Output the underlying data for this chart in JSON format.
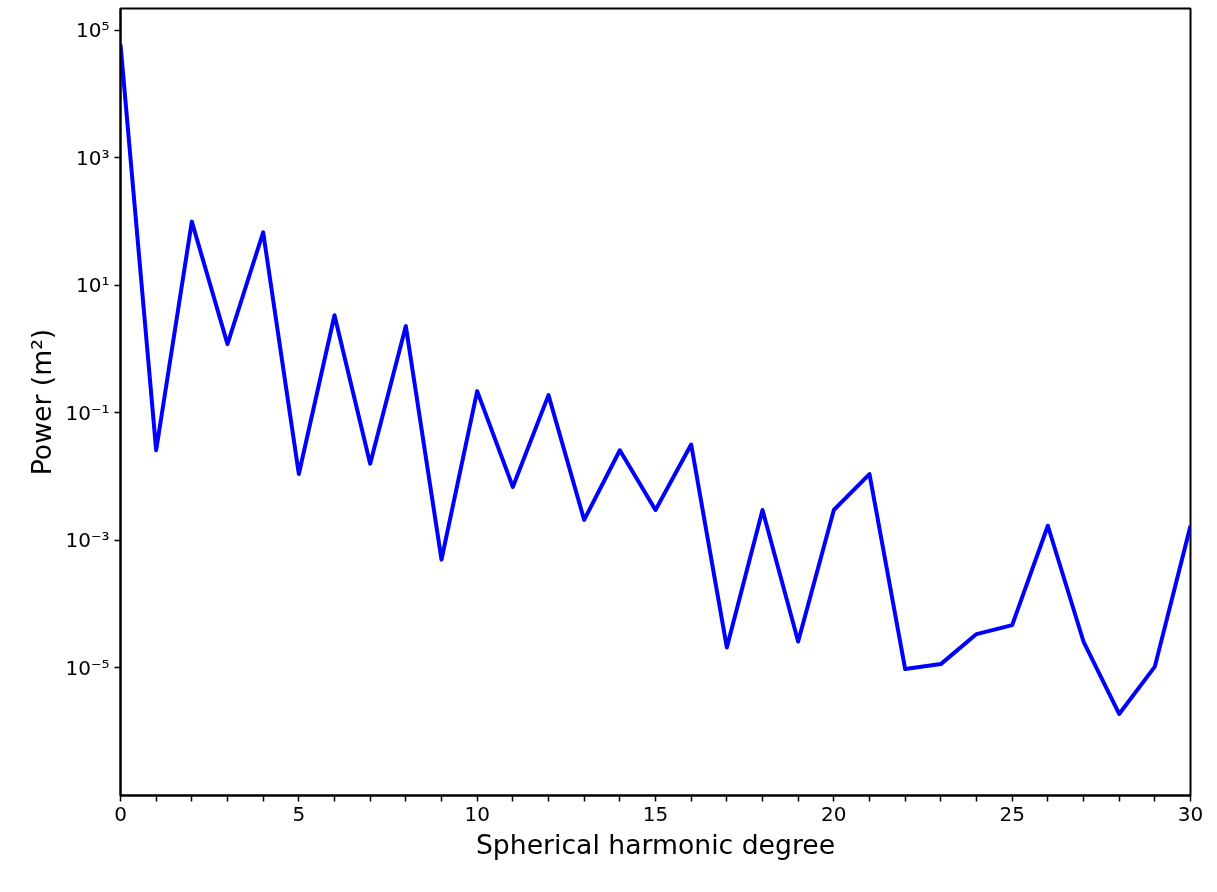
{
  "chart_data": {
    "type": "line",
    "xlabel": "Spherical harmonic degree",
    "ylabel": "Power (m²)",
    "log": "y",
    "grid": false,
    "marker": "none",
    "line_style": "solid",
    "x": [
      0,
      1,
      2,
      3,
      4,
      5,
      6,
      7,
      8,
      9,
      10,
      11,
      12,
      13,
      14,
      15,
      16,
      17,
      18,
      19,
      20,
      21,
      22,
      23,
      24,
      25,
      26,
      27,
      28,
      29,
      30
    ],
    "series": [
      {
        "color": "#0000ff",
        "values": [
          60000,
          0.026,
          100,
          1.2,
          68,
          0.011,
          3.4,
          0.016,
          2.3,
          0.0005,
          0.22,
          0.0069,
          0.19,
          0.0021,
          0.026,
          0.003,
          0.032,
          2.1e-05,
          0.003,
          2.6e-05,
          0.003,
          0.011,
          9.6e-06,
          1.15e-05,
          3.4e-05,
          4.7e-05,
          0.0017,
          2.6e-05,
          1.9e-06,
          1.05e-05,
          0.0017
        ]
      }
    ],
    "xlim": [
      0,
      30
    ],
    "xticks": [
      0,
      {
        "value": 1,
        "label": null
      },
      {
        "value": 2,
        "label": null
      },
      {
        "value": 3,
        "label": null
      },
      {
        "value": 4,
        "label": null
      },
      5,
      {
        "value": 6,
        "label": null
      },
      {
        "value": 7,
        "label": null
      },
      {
        "value": 8,
        "label": null
      },
      {
        "value": 9,
        "label": null
      },
      10,
      {
        "value": 11,
        "label": null
      },
      {
        "value": 12,
        "label": null
      },
      {
        "value": 13,
        "label": null
      },
      {
        "value": 14,
        "label": null
      },
      15,
      {
        "value": 16,
        "label": null
      },
      {
        "value": 17,
        "label": null
      },
      {
        "value": 18,
        "label": null
      },
      {
        "value": 19,
        "label": null
      },
      20,
      {
        "value": 21,
        "label": null
      },
      {
        "value": 22,
        "label": null
      },
      {
        "value": 23,
        "label": null
      },
      {
        "value": 24,
        "label": null
      },
      25,
      {
        "value": 26,
        "label": null
      },
      {
        "value": 27,
        "label": null
      },
      {
        "value": 28,
        "label": null
      },
      {
        "value": 29,
        "label": null
      },
      30
    ],
    "ylim": [
      1e-07,
      220000.0
    ],
    "yticks": [
      {
        "value": 1e-05,
        "label": "10⁻⁵"
      },
      {
        "value": 0.001,
        "label": "10⁻³"
      },
      {
        "value": 0.1,
        "label": "10⁻¹"
      },
      {
        "value": 10,
        "label": "10¹"
      },
      {
        "value": 1000,
        "label": "10³"
      },
      {
        "value": 100000.0,
        "label": "10⁵"
      }
    ]
  }
}
